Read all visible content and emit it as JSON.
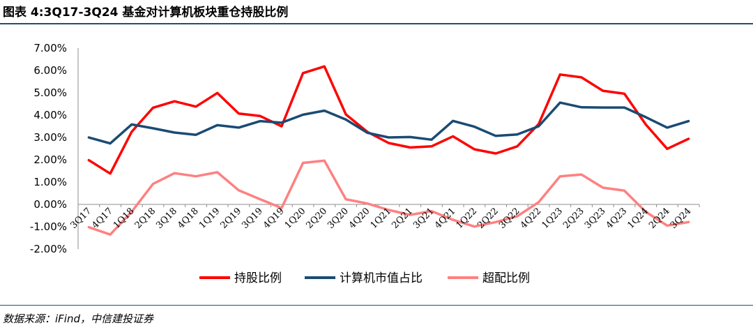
{
  "header": {
    "title": "图表 4:3Q17-3Q24 基金对计算机板块重仓持股比例"
  },
  "footer": {
    "source": "数据来源：iFind，中信建投证券"
  },
  "chart_data": {
    "type": "line",
    "categories": [
      "3Q17",
      "4Q17",
      "1Q18",
      "2Q18",
      "3Q18",
      "4Q18",
      "1Q19",
      "2Q19",
      "3Q19",
      "4Q19",
      "1Q20",
      "2Q20",
      "3Q20",
      "4Q20",
      "1Q21",
      "2Q21",
      "3Q21",
      "4Q21",
      "1Q22",
      "2Q22",
      "3Q22",
      "4Q22",
      "1Q23",
      "2Q23",
      "3Q23",
      "4Q23",
      "1Q24",
      "2Q24",
      "3Q24"
    ],
    "y_tick_labels": [
      "7.00%",
      "6.00%",
      "5.00%",
      "4.00%",
      "3.00%",
      "2.00%",
      "1.00%",
      "0.00%",
      "-1.00%",
      "-2.00%"
    ],
    "ylim": [
      -2,
      7
    ],
    "y_unit": "%",
    "grid": false,
    "legend_position": "bottom",
    "series": [
      {
        "name": "持股比例",
        "color": "#ff0000",
        "values": [
          1.98,
          1.38,
          3.25,
          4.33,
          4.62,
          4.38,
          4.99,
          4.07,
          3.96,
          3.5,
          5.88,
          6.18,
          4.03,
          3.25,
          2.75,
          2.55,
          2.6,
          3.05,
          2.47,
          2.28,
          2.6,
          3.6,
          5.82,
          5.69,
          5.09,
          4.96,
          3.58,
          2.49,
          2.94
        ]
      },
      {
        "name": "计算机市值占比",
        "color": "#1a4b73",
        "values": [
          3.0,
          2.73,
          3.58,
          3.41,
          3.22,
          3.12,
          3.55,
          3.44,
          3.73,
          3.66,
          4.02,
          4.2,
          3.8,
          3.21,
          3.0,
          3.02,
          2.9,
          3.74,
          3.48,
          3.07,
          3.13,
          3.5,
          4.56,
          4.35,
          4.34,
          4.34,
          3.91,
          3.44,
          3.73
        ]
      },
      {
        "name": "超配比例",
        "color": "#ff8080",
        "values": [
          -1.02,
          -1.35,
          -0.33,
          0.92,
          1.4,
          1.26,
          1.44,
          0.63,
          0.23,
          -0.16,
          1.86,
          1.96,
          0.23,
          0.04,
          -0.25,
          -0.47,
          -0.3,
          -0.69,
          -0.99,
          -0.79,
          -0.53,
          0.1,
          1.26,
          1.34,
          0.75,
          0.62,
          -0.33,
          -0.95,
          -0.79
        ]
      }
    ]
  }
}
